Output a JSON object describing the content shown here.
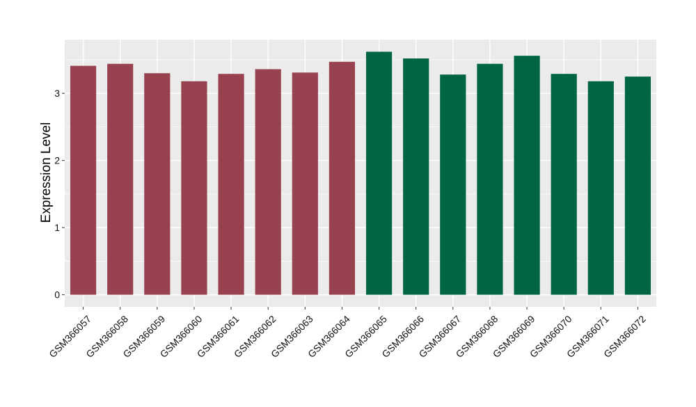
{
  "chart_data": {
    "type": "bar",
    "title": "",
    "xlabel": "",
    "ylabel": "Expression Level",
    "categories": [
      "GSM366057",
      "GSM366058",
      "GSM366059",
      "GSM366060",
      "GSM366061",
      "GSM366062",
      "GSM366063",
      "GSM366064",
      "GSM366065",
      "GSM366066",
      "GSM366067",
      "GSM366068",
      "GSM366069",
      "GSM366070",
      "GSM366071",
      "GSM366072"
    ],
    "values": [
      3.41,
      3.44,
      3.3,
      3.18,
      3.29,
      3.36,
      3.31,
      3.47,
      3.62,
      3.52,
      3.28,
      3.44,
      3.56,
      3.29,
      3.18,
      3.25
    ],
    "bar_colors": [
      "#99424F",
      "#99424F",
      "#99424F",
      "#99424F",
      "#99424F",
      "#99424F",
      "#99424F",
      "#99424F",
      "#006642",
      "#006642",
      "#006642",
      "#006642",
      "#006642",
      "#006642",
      "#006642",
      "#006642"
    ],
    "yticks": [
      0,
      1,
      2,
      3
    ],
    "ytick_labels": [
      "0",
      "1",
      "2",
      "3"
    ],
    "ylim": [
      -0.18,
      3.8
    ],
    "grid": true,
    "panel_background": "#EBEBEB",
    "gridline_color": "#FFFFFF",
    "legend": "none"
  }
}
